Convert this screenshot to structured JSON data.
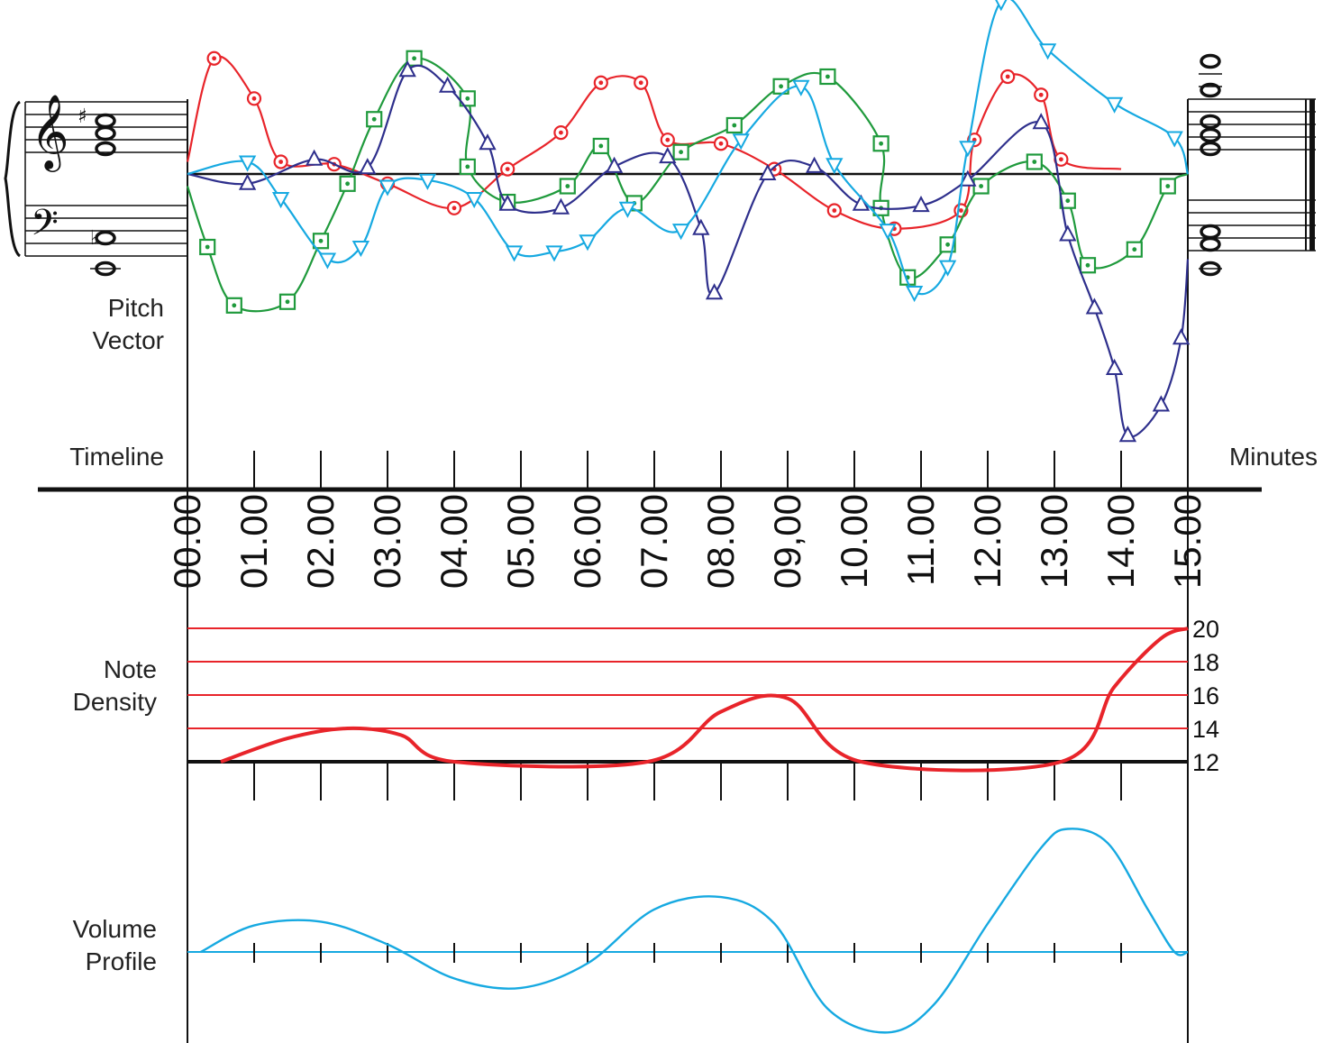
{
  "labels": {
    "pitch_vector": [
      "Pitch",
      "Vector"
    ],
    "timeline": "Timeline",
    "minutes": "Minutes",
    "note_density": [
      "Note",
      "Density"
    ],
    "volume_profile": [
      "Volume",
      "Profile"
    ]
  },
  "time_ticks": [
    "00.00",
    "01.00",
    "02.00",
    "03.00",
    "04.00",
    "05.00",
    "06.00",
    "07.00",
    "08.00",
    "09,00",
    "10.00",
    "11.00",
    "12.00",
    "13.00",
    "14.00",
    "15.00"
  ],
  "density_ticks": [
    "20",
    "18",
    "16",
    "14",
    "12"
  ],
  "colors": {
    "red": "#e8242a",
    "green": "#1f9a3c",
    "navy": "#2e2f8c",
    "cyan": "#16a9e1",
    "black": "#111111"
  },
  "chart_data": [
    {
      "type": "line",
      "name": "pitch-vector",
      "x_unit": "minutes",
      "xlim": [
        0,
        15
      ],
      "series": [
        {
          "color": "red",
          "marker": "circle",
          "points": [
            [
              0,
              0.1
            ],
            [
              0.4,
              0.95
            ],
            [
              1,
              0.62
            ],
            [
              1.4,
              0.1
            ],
            [
              2.2,
              0.08
            ],
            [
              3,
              -0.08
            ],
            [
              4,
              -0.28
            ],
            [
              4.8,
              0.04
            ],
            [
              5.6,
              0.34
            ],
            [
              6.2,
              0.75
            ],
            [
              6.8,
              0.75
            ],
            [
              7.2,
              0.28
            ],
            [
              8,
              0.25
            ],
            [
              8.8,
              0.04
            ],
            [
              9.7,
              -0.3
            ],
            [
              10.6,
              -0.45
            ],
            [
              11.6,
              -0.3
            ],
            [
              11.8,
              0.28
            ],
            [
              12.3,
              0.8
            ],
            [
              12.8,
              0.65
            ],
            [
              13.1,
              0.12
            ],
            [
              14,
              0.04
            ]
          ]
        },
        {
          "color": "green",
          "marker": "square",
          "points": [
            [
              0,
              -0.1
            ],
            [
              0.3,
              -0.6
            ],
            [
              0.7,
              -1.08
            ],
            [
              1.5,
              -1.05
            ],
            [
              2,
              -0.55
            ],
            [
              2.4,
              -0.08
            ],
            [
              2.8,
              0.45
            ],
            [
              3.4,
              0.95
            ],
            [
              4.2,
              0.62
            ],
            [
              4.2,
              0.06
            ],
            [
              4.8,
              -0.23
            ],
            [
              5.7,
              -0.1
            ],
            [
              6.2,
              0.23
            ],
            [
              6.7,
              -0.24
            ],
            [
              7.4,
              0.18
            ],
            [
              8.2,
              0.4
            ],
            [
              8.9,
              0.72
            ],
            [
              9.6,
              0.8
            ],
            [
              10.4,
              0.25
            ],
            [
              10.4,
              -0.28
            ],
            [
              10.8,
              -0.85
            ],
            [
              11.4,
              -0.58
            ],
            [
              11.9,
              -0.1
            ],
            [
              12.7,
              0.1
            ],
            [
              13.2,
              -0.22
            ],
            [
              13.5,
              -0.75
            ],
            [
              14.2,
              -0.62
            ],
            [
              14.7,
              -0.1
            ],
            [
              15,
              0
            ]
          ]
        },
        {
          "color": "navy",
          "marker": "triangle-up",
          "points": [
            [
              0,
              0
            ],
            [
              0.9,
              -0.08
            ],
            [
              1.9,
              0.12
            ],
            [
              2.7,
              0.05
            ],
            [
              3.3,
              0.85
            ],
            [
              3.9,
              0.72
            ],
            [
              4.5,
              0.25
            ],
            [
              4.8,
              -0.25
            ],
            [
              5.6,
              -0.28
            ],
            [
              6.4,
              0.06
            ],
            [
              7.2,
              0.14
            ],
            [
              7.7,
              -0.45
            ],
            [
              7.9,
              -0.98
            ],
            [
              8.7,
              0
            ],
            [
              9.4,
              0.06
            ],
            [
              10.1,
              -0.25
            ],
            [
              11,
              -0.26
            ],
            [
              11.7,
              -0.05
            ],
            [
              12.8,
              0.42
            ],
            [
              13.2,
              -0.5
            ],
            [
              13.6,
              -1.1
            ],
            [
              13.9,
              -1.6
            ],
            [
              14.1,
              -2.15
            ],
            [
              14.6,
              -1.9
            ],
            [
              14.9,
              -1.35
            ],
            [
              15,
              -0.7
            ]
          ]
        },
        {
          "color": "cyan",
          "marker": "triangle-down",
          "points": [
            [
              0,
              0
            ],
            [
              0.9,
              0.1
            ],
            [
              1.4,
              -0.2
            ],
            [
              2.1,
              -0.7
            ],
            [
              2.6,
              -0.6
            ],
            [
              3,
              -0.1
            ],
            [
              3.6,
              -0.05
            ],
            [
              4.3,
              -0.2
            ],
            [
              4.9,
              -0.64
            ],
            [
              5.5,
              -0.64
            ],
            [
              6,
              -0.55
            ],
            [
              6.6,
              -0.28
            ],
            [
              7.4,
              -0.46
            ],
            [
              8.3,
              0.28
            ],
            [
              9.2,
              0.72
            ],
            [
              9.7,
              0.08
            ],
            [
              10.5,
              -0.46
            ],
            [
              10.9,
              -0.97
            ],
            [
              11.4,
              -0.76
            ],
            [
              11.7,
              0.22
            ],
            [
              12.2,
              1.42
            ],
            [
              12.9,
              1.02
            ],
            [
              13.9,
              0.58
            ],
            [
              14.8,
              0.3
            ],
            [
              15,
              0
            ]
          ]
        }
      ]
    },
    {
      "type": "line",
      "name": "note-density",
      "x_unit": "minutes",
      "xlim": [
        0,
        15
      ],
      "ylim": [
        12,
        20
      ],
      "series": [
        {
          "color": "red",
          "points": [
            [
              0.5,
              12
            ],
            [
              1.5,
              13.4
            ],
            [
              2.4,
              14
            ],
            [
              3.2,
              13.6
            ],
            [
              4,
              12
            ],
            [
              6.9,
              12
            ],
            [
              8,
              15
            ],
            [
              9,
              15.8
            ],
            [
              10.1,
              12
            ],
            [
              13.1,
              12
            ],
            [
              13.9,
              16.5
            ],
            [
              14.6,
              19.4
            ],
            [
              15,
              20
            ]
          ]
        }
      ]
    },
    {
      "type": "line",
      "name": "volume-profile",
      "x_unit": "minutes",
      "xlim": [
        0,
        15
      ],
      "series": [
        {
          "color": "cyan",
          "points": [
            [
              0.2,
              0
            ],
            [
              1,
              0.28
            ],
            [
              2,
              0.32
            ],
            [
              3,
              0.08
            ],
            [
              4,
              -0.28
            ],
            [
              5,
              -0.38
            ],
            [
              6,
              -0.12
            ],
            [
              7,
              0.45
            ],
            [
              8,
              0.58
            ],
            [
              8.8,
              0.3
            ],
            [
              9.6,
              -0.6
            ],
            [
              10.5,
              -0.85
            ],
            [
              11.2,
              -0.55
            ],
            [
              12,
              0.3
            ],
            [
              12.8,
              1.1
            ],
            [
              13.2,
              1.3
            ],
            [
              13.8,
              1.15
            ],
            [
              14.4,
              0.45
            ],
            [
              14.8,
              0
            ],
            [
              15,
              0
            ]
          ]
        }
      ]
    }
  ]
}
